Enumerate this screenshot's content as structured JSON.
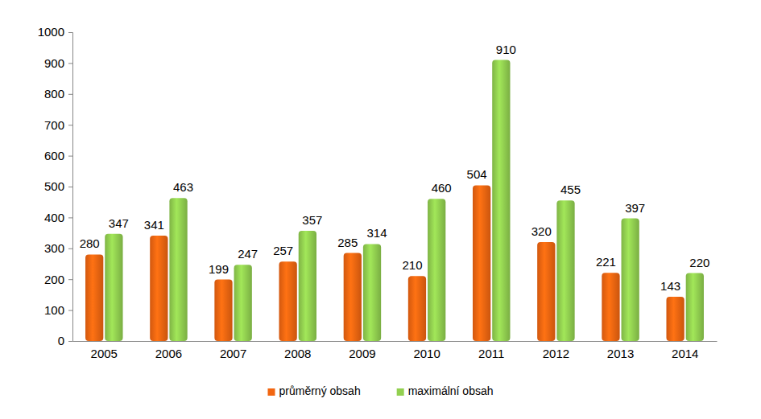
{
  "chart_data": {
    "type": "bar",
    "categories": [
      "2005",
      "2006",
      "2007",
      "2008",
      "2009",
      "2010",
      "2011",
      "2012",
      "2013",
      "2014"
    ],
    "series": [
      {
        "name": "průměrný obsah",
        "color": "#f26611",
        "values": [
          280,
          341,
          199,
          257,
          285,
          210,
          504,
          320,
          221,
          143
        ]
      },
      {
        "name": "maximální obsah",
        "color": "#92d050",
        "values": [
          347,
          463,
          247,
          357,
          314,
          460,
          910,
          455,
          397,
          220
        ]
      }
    ],
    "ylim": [
      0,
      1000
    ],
    "yticks": [
      0,
      100,
      200,
      300,
      400,
      500,
      600,
      700,
      800,
      900,
      1000
    ],
    "grid": false,
    "legend": "bottom",
    "data_labels": true
  }
}
